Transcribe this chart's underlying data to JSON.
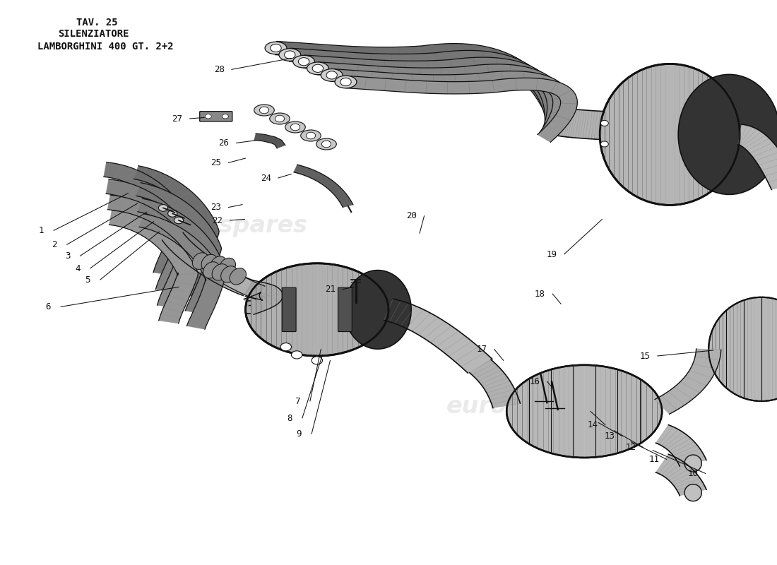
{
  "bg_color": "#ffffff",
  "dc": "#111111",
  "gray_fill": "#b8b8b8",
  "dark_fill": "#444444",
  "mid_fill": "#888888",
  "light_fill": "#d8d8d8",
  "wm_color": "#c8c8c8",
  "line1": "LAMBORGHINI 400 GT. 2+2",
  "line2": "SILENZIATORE",
  "line3": "TAV. 25",
  "callouts": {
    "1": [
      0.053,
      0.408,
      0.165,
      0.342
    ],
    "2": [
      0.07,
      0.433,
      0.177,
      0.36
    ],
    "3": [
      0.087,
      0.453,
      0.189,
      0.375
    ],
    "4": [
      0.1,
      0.475,
      0.198,
      0.392
    ],
    "5": [
      0.113,
      0.495,
      0.205,
      0.41
    ],
    "6": [
      0.062,
      0.543,
      0.23,
      0.508
    ],
    "7": [
      0.383,
      0.71,
      0.413,
      0.618
    ],
    "8": [
      0.373,
      0.74,
      0.415,
      0.628
    ],
    "9": [
      0.385,
      0.768,
      0.425,
      0.638
    ],
    "10": [
      0.892,
      0.838,
      0.84,
      0.797
    ],
    "11": [
      0.842,
      0.813,
      0.812,
      0.782
    ],
    "12": [
      0.812,
      0.792,
      0.79,
      0.762
    ],
    "13": [
      0.785,
      0.772,
      0.77,
      0.748
    ],
    "14": [
      0.763,
      0.752,
      0.76,
      0.728
    ],
    "15": [
      0.83,
      0.63,
      0.918,
      0.62
    ],
    "16": [
      0.688,
      0.675,
      0.712,
      0.688
    ],
    "17": [
      0.62,
      0.618,
      0.648,
      0.638
    ],
    "18": [
      0.695,
      0.52,
      0.722,
      0.538
    ],
    "19": [
      0.71,
      0.45,
      0.775,
      0.388
    ],
    "20": [
      0.53,
      0.382,
      0.54,
      0.413
    ],
    "21": [
      0.425,
      0.512,
      0.455,
      0.508
    ],
    "22": [
      0.28,
      0.39,
      0.315,
      0.388
    ],
    "23": [
      0.278,
      0.367,
      0.312,
      0.362
    ],
    "24": [
      0.342,
      0.315,
      0.375,
      0.308
    ],
    "25": [
      0.278,
      0.288,
      0.316,
      0.28
    ],
    "26": [
      0.288,
      0.253,
      0.332,
      0.248
    ],
    "27": [
      0.228,
      0.21,
      0.263,
      0.208
    ],
    "28": [
      0.282,
      0.123,
      0.375,
      0.103
    ]
  }
}
